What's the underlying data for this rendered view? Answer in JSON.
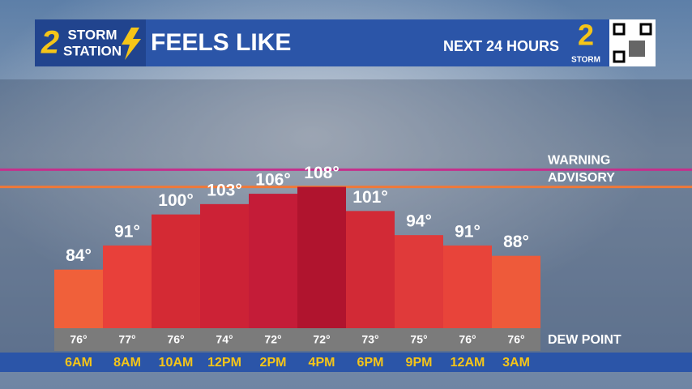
{
  "header": {
    "logo_number": "2",
    "logo_top": "STORM",
    "logo_bottom": "STATION",
    "title": "FEELS LIKE",
    "subtitle": "NEXT 24 HOURS"
  },
  "chart_data": {
    "type": "bar",
    "categories": [
      "6AM",
      "8AM",
      "10AM",
      "12PM",
      "2PM",
      "4PM",
      "6PM",
      "9PM",
      "12AM",
      "3AM"
    ],
    "values": [
      84,
      91,
      100,
      103,
      106,
      108,
      101,
      94,
      91,
      88
    ],
    "value_labels": [
      "84°",
      "91°",
      "100°",
      "103°",
      "106°",
      "108°",
      "101°",
      "94°",
      "91°",
      "88°"
    ],
    "colors": [
      "#f0603a",
      "#e8403a",
      "#d42a34",
      "#cc2236",
      "#c41c38",
      "#b0142e",
      "#d22a36",
      "#e03a3a",
      "#e8443a",
      "#ee5a3a"
    ],
    "ylim": [
      67,
      130
    ],
    "thresholds": [
      {
        "name": "WARNING",
        "value": 113,
        "color": "#c4308c"
      },
      {
        "name": "ADVISORY",
        "value": 108,
        "color": "#f07838"
      }
    ],
    "dew_point": {
      "label": "DEW POINT",
      "values": [
        76,
        77,
        76,
        74,
        72,
        72,
        73,
        75,
        76,
        76
      ],
      "value_labels": [
        "76°",
        "77°",
        "76°",
        "74°",
        "72°",
        "72°",
        "73°",
        "75°",
        "76°",
        "76°"
      ]
    }
  }
}
